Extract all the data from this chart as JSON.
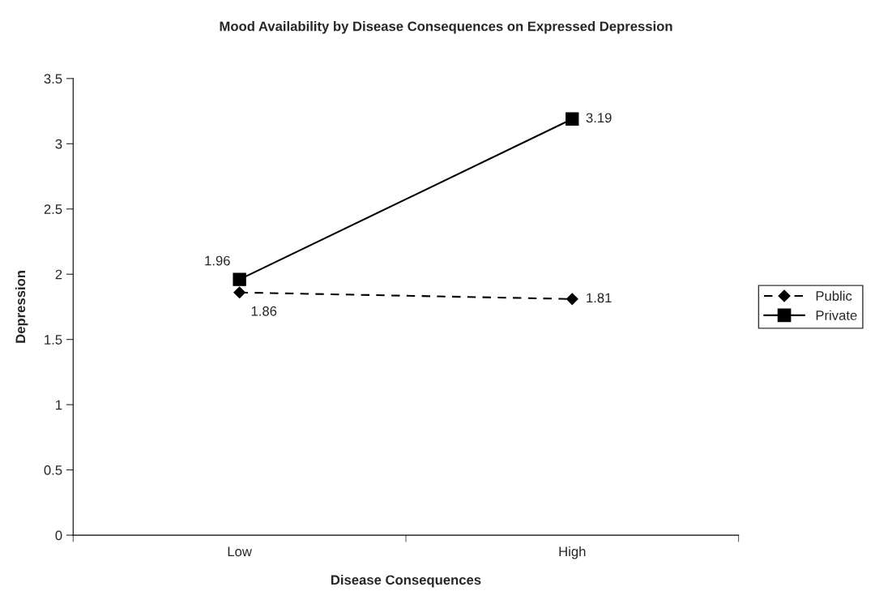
{
  "chart_data": {
    "type": "line",
    "title": "Mood Availability by Disease Consequences on Expressed Depression",
    "xlabel": "Disease Consequences",
    "ylabel": "Depression",
    "categories": [
      "Low",
      "High"
    ],
    "series": [
      {
        "name": "Public",
        "color": "#000000",
        "values": [
          1.86,
          1.81
        ],
        "marker": "diamond",
        "line_style": "dashed"
      },
      {
        "name": "Private",
        "color": "#000000",
        "values": [
          1.96,
          3.19
        ],
        "marker": "square",
        "line_style": "solid"
      }
    ],
    "ylim": [
      0,
      3.5
    ],
    "yticks": [
      0,
      0.5,
      1,
      1.5,
      2,
      2.5,
      3,
      3.5
    ],
    "grid": false,
    "legend": "right",
    "data_labels": true
  }
}
